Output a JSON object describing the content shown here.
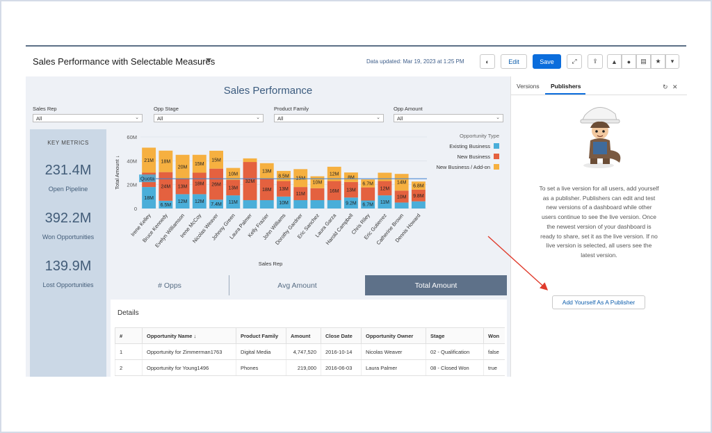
{
  "header": {
    "title": "Sales Performance with Selectable Measures",
    "updated": "Data updated: Mar 19, 2023 at 1:25 PM",
    "edit_label": "Edit",
    "save_label": "Save"
  },
  "dashboard": {
    "title": "Sales Performance",
    "filters": [
      {
        "label": "Sales Rep",
        "value": "All"
      },
      {
        "label": "Opp Stage",
        "value": "All"
      },
      {
        "label": "Product Family",
        "value": "All"
      },
      {
        "label": "Opp Amount",
        "value": "All"
      }
    ],
    "key_metrics": {
      "title": "KEY METRICS",
      "items": [
        {
          "value": "231.4M",
          "label": "Open Pipeline"
        },
        {
          "value": "392.2M",
          "label": "Won Opportunities"
        },
        {
          "value": "139.9M",
          "label": "Lost Opportunities"
        }
      ]
    },
    "measures": [
      "# Opps",
      "Avg Amount",
      "Total Amount"
    ],
    "active_measure": "Total Amount"
  },
  "chart_data": {
    "type": "bar",
    "stacked": true,
    "xlabel": "Sales Rep",
    "ylabel": "Total Amount ↓",
    "yticks": [
      "0",
      "20M",
      "40M",
      "60M"
    ],
    "ylim": [
      0,
      60
    ],
    "legend_title": "Opportunity Type",
    "reference_line": {
      "label": "Quota",
      "value": 25
    },
    "categories": [
      "Irene Kelley",
      "Bruce Kennedy",
      "Evelyn Williamson",
      "Irene McCoy",
      "Nicolas Weaver",
      "Johnny Green",
      "Laura Palmer",
      "Kelly Frazier",
      "John Williams",
      "Dorothy Gardner",
      "Eric Sanchez",
      "Laura Garza",
      "Harold Campbell",
      "Chris Riley",
      "Eric Gutierrez",
      "Catherine Brown",
      "Dennis Howard"
    ],
    "series": [
      {
        "name": "Existing Business",
        "color": "#4aaed9",
        "values": [
          18,
          6.5,
          12,
          12,
          7.4,
          11,
          7,
          7,
          10,
          7,
          7,
          7,
          9.2,
          6.7,
          11,
          5,
          6
        ],
        "labels": [
          "18M",
          "6.5M",
          "12M",
          "12M",
          "7.4M",
          "11M",
          "",
          "",
          "10M",
          "",
          "",
          "",
          "9.2M",
          "6.7M",
          "11M",
          "",
          ""
        ]
      },
      {
        "name": "New Business",
        "color": "#e4613f",
        "values": [
          12,
          24,
          13,
          18,
          26,
          13,
          32,
          18,
          13,
          11,
          10,
          16,
          13,
          11,
          12,
          10,
          9.8
        ],
        "labels": [
          "",
          "24M",
          "13M",
          "18M",
          "26M",
          "13M",
          "32M",
          "18M",
          "13M",
          "11M",
          "",
          "16M",
          "13M",
          "",
          "12M",
          "10M",
          "9.8M"
        ]
      },
      {
        "name": "New Business / Add-on",
        "color": "#f6b040",
        "values": [
          21,
          18,
          20,
          15,
          15,
          10,
          3,
          13,
          8.5,
          15,
          10,
          12,
          8,
          6.7,
          7,
          14,
          6.8
        ],
        "labels": [
          "21M",
          "18M",
          "20M",
          "15M",
          "15M",
          "10M",
          "",
          "13M",
          "8.5M",
          "15M",
          "10M",
          "12M",
          "8M",
          "6.7M",
          "",
          "14M",
          "6.8M"
        ]
      }
    ]
  },
  "details": {
    "title": "Details",
    "columns": [
      "#",
      "Opportunity Name ↓",
      "Product Family",
      "Amount",
      "Close Date",
      "Opportunity Owner",
      "Stage",
      "Won"
    ],
    "rows": [
      [
        "1",
        "Opportunity for Zimmerman1763",
        "Digital Media",
        "4,747,520",
        "2016-10-14",
        "Nicolas Weaver",
        "02 - Qualification",
        "false"
      ],
      [
        "2",
        "Opportunity for Young1496",
        "Phones",
        "219,000",
        "2016-06-03",
        "Laura Palmer",
        "08 - Closed Won",
        "true"
      ]
    ]
  },
  "side": {
    "tab_versions": "Versions",
    "tab_publishers": "Publishers",
    "message": "To set a live version for all users, add yourself as a publisher. Publishers can edit and test new versions of a dashboard while other users continue to see the live version. Once the newest version of your dashboard is ready to share, set it as the live version. If no live version is selected, all users see the latest version.",
    "button_label": "Add Yourself As A Publisher"
  }
}
